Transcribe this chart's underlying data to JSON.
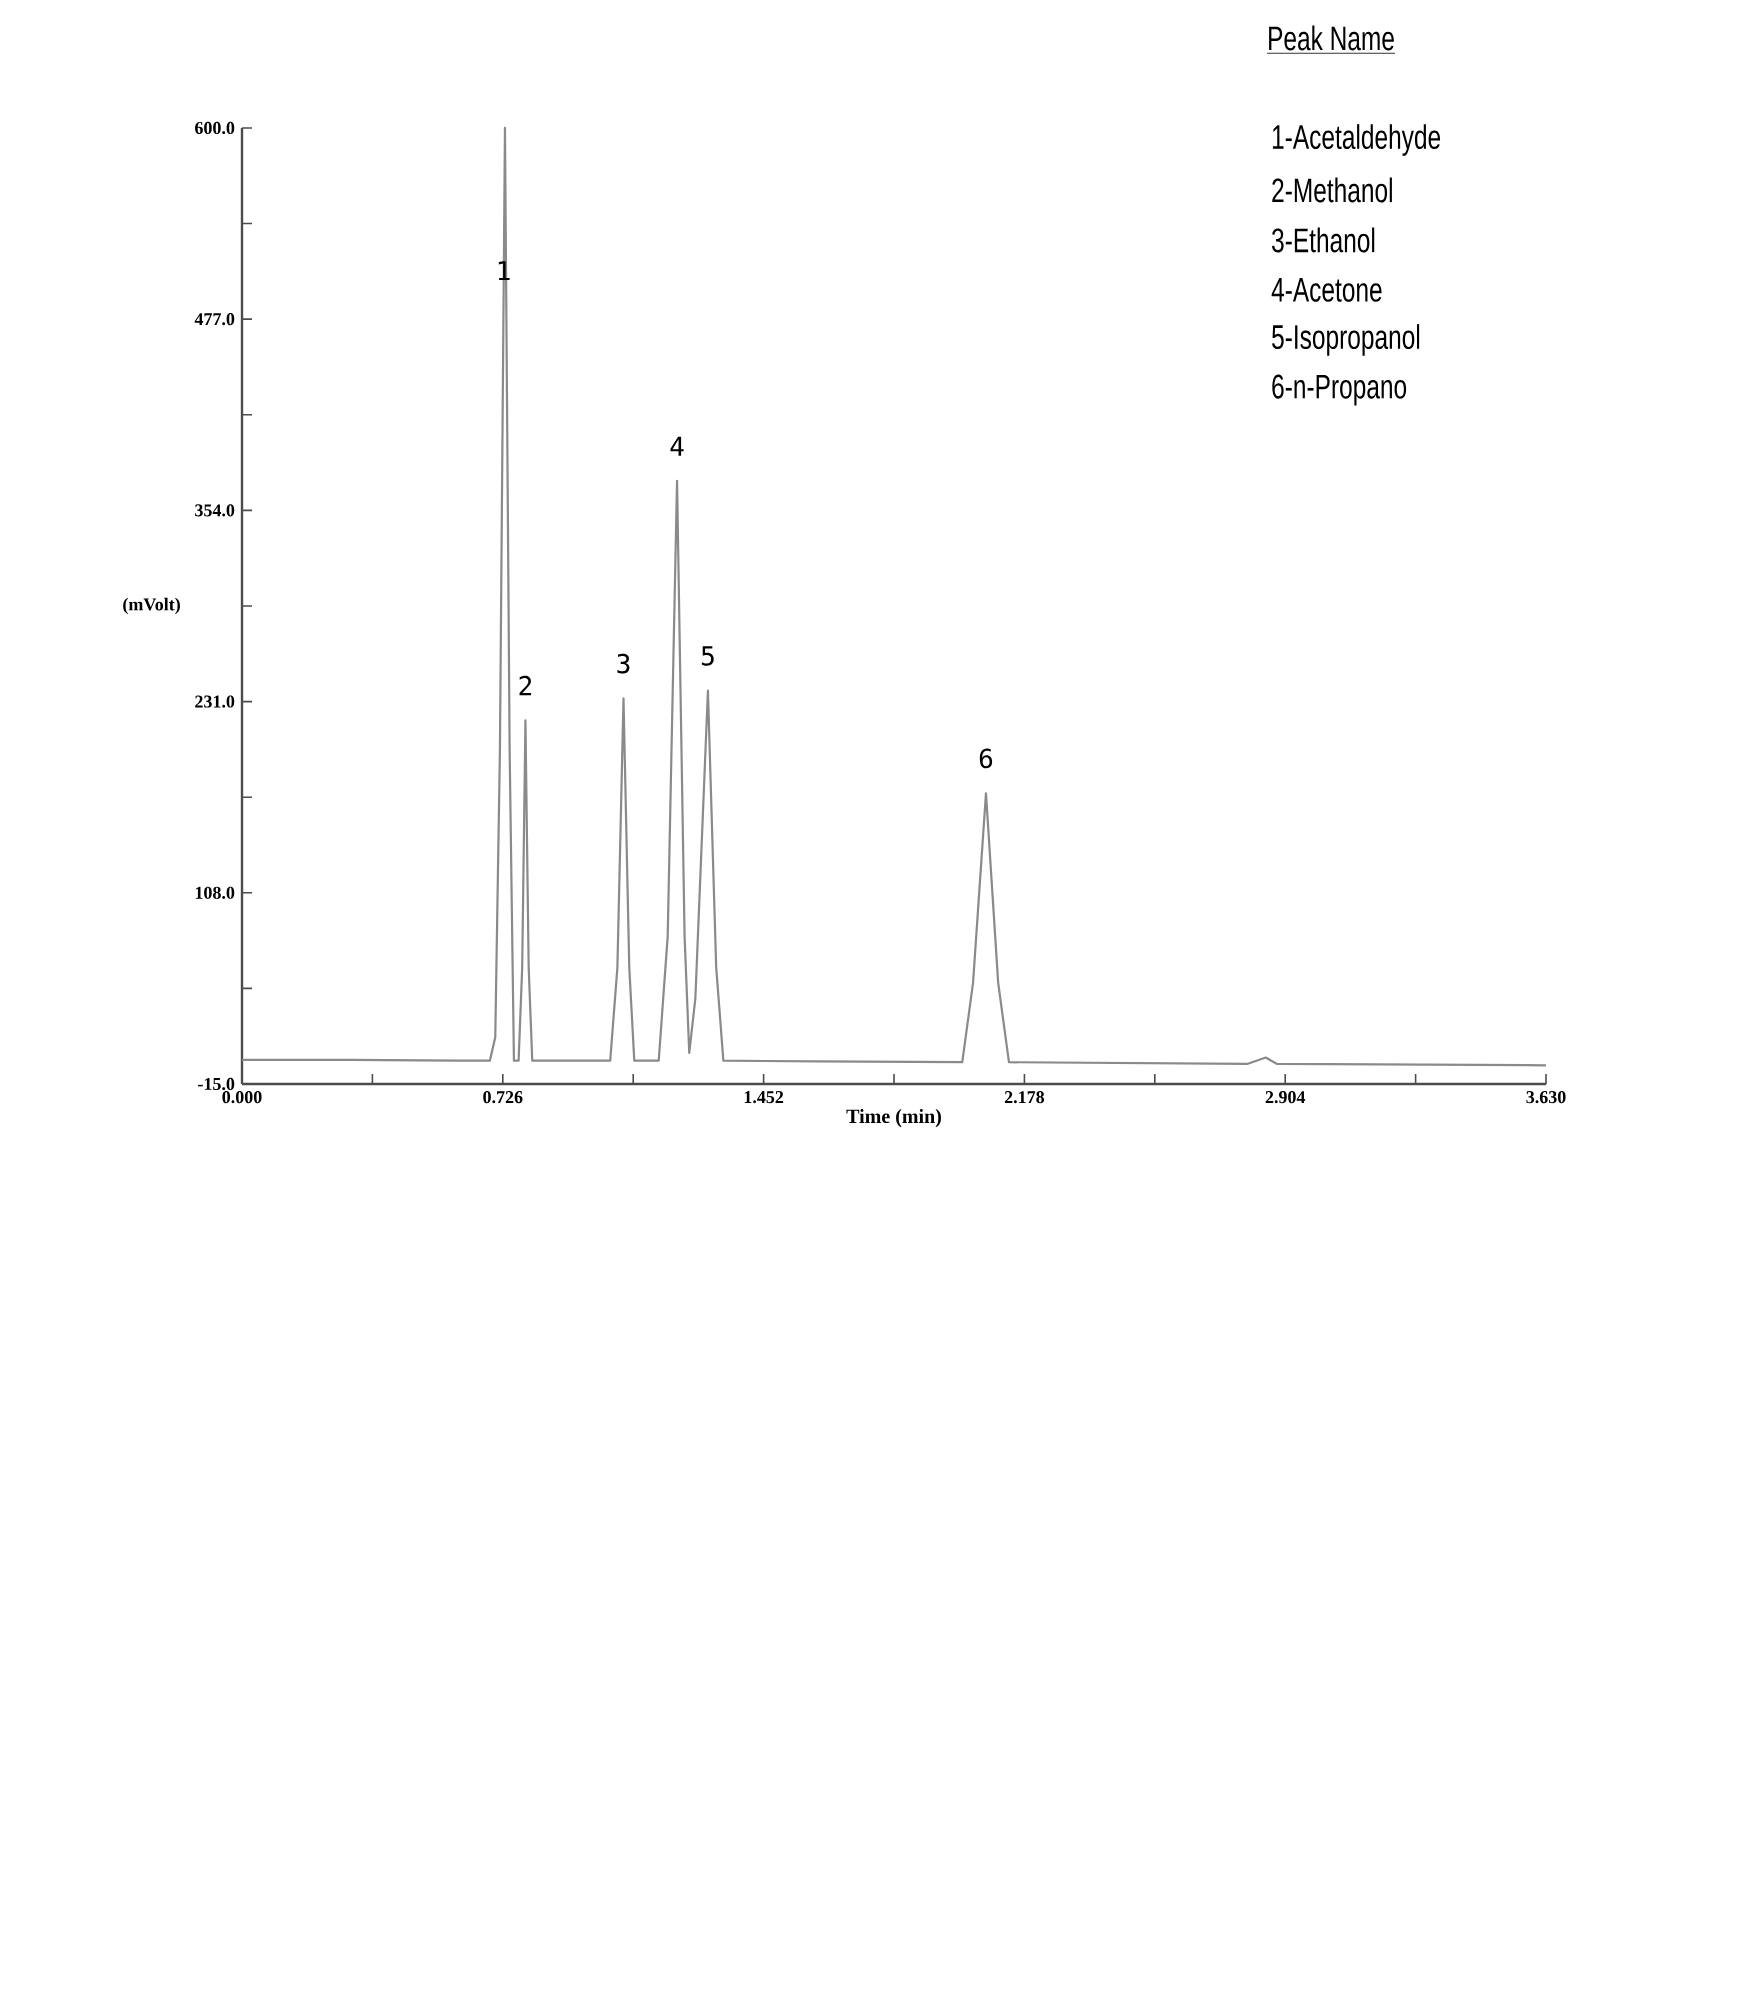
{
  "chart_data": {
    "type": "line",
    "xlabel": "Time (min)",
    "ylabel": "(mVolt)",
    "xlim": [
      0,
      3.63
    ],
    "ylim": [
      -15,
      600
    ],
    "xticks": [
      {
        "value": 0,
        "label": "0.000"
      },
      {
        "value": 0.363,
        "label": null
      },
      {
        "value": 0.726,
        "label": "0.726"
      },
      {
        "value": 1.089,
        "label": null
      },
      {
        "value": 1.452,
        "label": "1.452"
      },
      {
        "value": 1.815,
        "label": null
      },
      {
        "value": 2.178,
        "label": "2.178"
      },
      {
        "value": 2.541,
        "label": null
      },
      {
        "value": 2.904,
        "label": "2.904"
      },
      {
        "value": 3.267,
        "label": null
      },
      {
        "value": 3.63,
        "label": "3.630"
      }
    ],
    "yticks": [
      {
        "value": -15,
        "label": "-15.0"
      },
      {
        "value": 46.5,
        "label": null
      },
      {
        "value": 108,
        "label": "108.0"
      },
      {
        "value": 169.5,
        "label": null
      },
      {
        "value": 231,
        "label": "231.0"
      },
      {
        "value": 292.5,
        "label": null
      },
      {
        "value": 354,
        "label": "354.0"
      },
      {
        "value": 415.5,
        "label": null
      },
      {
        "value": 477,
        "label": "477.0"
      },
      {
        "value": 538.5,
        "label": null
      },
      {
        "value": 600,
        "label": "600.0"
      }
    ],
    "series": [
      {
        "color": "#8a8a8a",
        "x": [
          0,
          0.3,
          0.6,
          0.69,
          0.705,
          0.718,
          0.732,
          0.745,
          0.757,
          0.77,
          0.78,
          0.789,
          0.798,
          0.808,
          1.025,
          1.045,
          1.062,
          1.078,
          1.092,
          1.16,
          1.185,
          1.211,
          1.232,
          1.245,
          1.262,
          1.297,
          1.32,
          1.34,
          1.6,
          2.005,
          2.035,
          2.071,
          2.105,
          2.135,
          2.8,
          2.85,
          2.88,
          3.63
        ],
        "values": [
          0.5,
          0.5,
          0,
          0,
          15,
          200,
          600,
          200,
          0,
          0,
          60,
          219,
          60,
          0,
          0,
          60,
          233,
          60,
          0,
          0,
          80,
          373,
          80,
          5,
          40,
          238,
          60,
          0,
          -0.5,
          -1,
          50,
          172,
          50,
          -1,
          -2,
          2,
          -2,
          -3
        ]
      }
    ],
    "annotations": [
      {
        "text": "1",
        "x": 0.728,
        "y": 486
      },
      {
        "text": "2",
        "x": 0.789,
        "y": 219
      },
      {
        "text": "3",
        "x": 1.062,
        "y": 233
      },
      {
        "text": "4",
        "x": 1.211,
        "y": 373
      },
      {
        "text": "5",
        "x": 1.297,
        "y": 238
      },
      {
        "text": "6",
        "x": 2.071,
        "y": 172
      },
      "Peak Name",
      "1-Acetaldehyde",
      "2-Methanol",
      "3-Ethanol",
      "4-Acetone",
      "5-Isopropanol",
      "6-n-Propano"
    ]
  }
}
